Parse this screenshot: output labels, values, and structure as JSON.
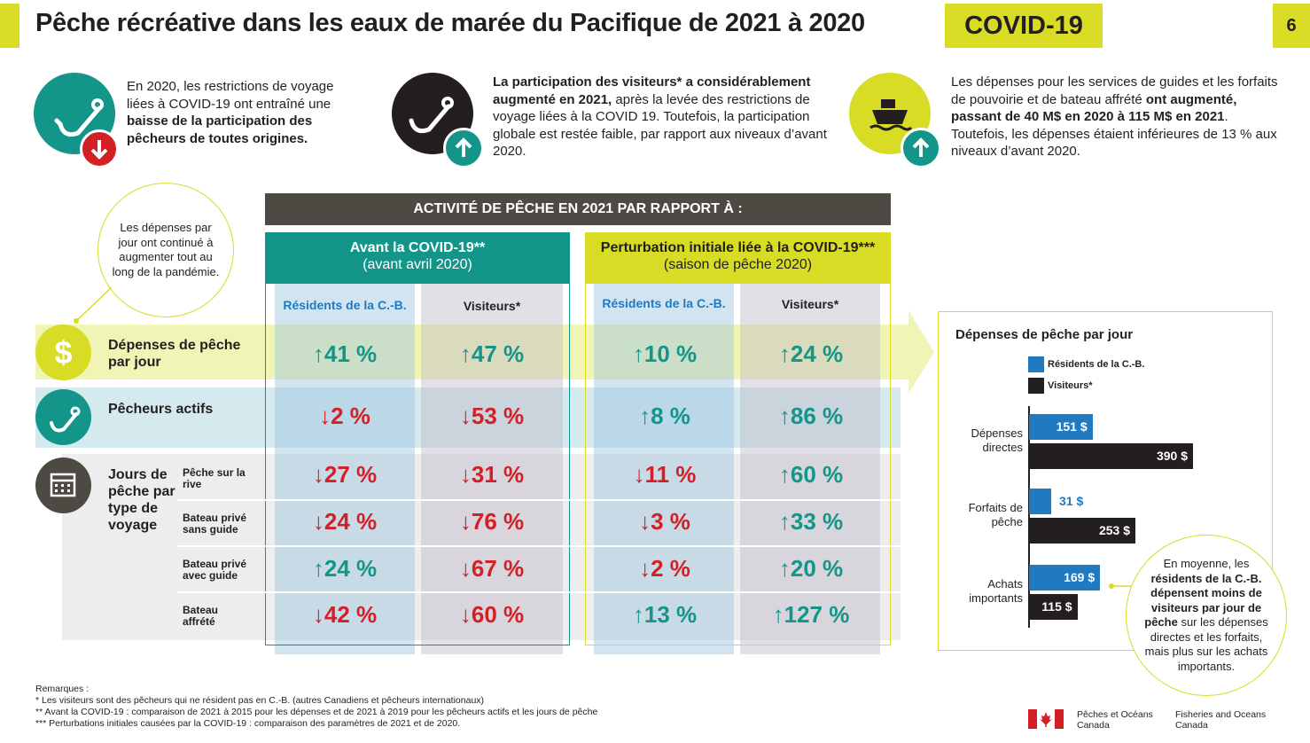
{
  "header": {
    "title": "Pêche récréative dans les eaux de marée du Pacifique de 2021 à 2020",
    "badge": "COVID-19",
    "page": "6"
  },
  "info": [
    {
      "pre": "En 2020, les restrictions de voyage liées à COVID-19 ont entraîné une ",
      "bold": "baisse de la participation des pêcheurs de toutes origines.",
      "post": "",
      "direction": "down"
    },
    {
      "pre": "",
      "bold": "La participation des visiteurs* a considérablement augmenté en 2021,",
      "post": " après la levée des restrictions de voyage liées à la COVID 19. Toutefois, la participation globale est restée faible, par rapport aux niveaux d’avant 2020.",
      "direction": "up"
    },
    {
      "pre": "Les dépenses pour les services de guides et les forfaits de pouvoirie et de bateau affrété ",
      "bold": "ont augmenté, passant de 40 M$ en 2020 à 115 M$ en 2021",
      "post": ". Toutefois, les dépenses étaient inférieures de 13 % aux niveaux d’avant 2020.",
      "direction": "up"
    }
  ],
  "callout_left": "Les dépenses par jour ont continué à augmenter tout au long de la pandémie.",
  "table": {
    "heading": "ACTIVITÉ DE PÊCHE EN 2021 PAR RAPPORT À :",
    "groups": [
      {
        "title": "Avant la COVID-19**",
        "subtitle": "(avant avril 2020)"
      },
      {
        "title": "Perturbation initiale liée à la COVID-19***",
        "subtitle": "(saison de pêche 2020)"
      }
    ],
    "columns": [
      "Résidents de la C.-B.",
      "Visiteurs*",
      "Résidents de la C.-B.",
      "Visiteurs*"
    ],
    "rows": [
      {
        "label": "Dépenses de pêche par jour",
        "values": [
          "↑41 %",
          "↑47 %",
          "↑10 %",
          "↑24 %"
        ],
        "dirs": [
          "up",
          "up",
          "up",
          "up"
        ]
      },
      {
        "label": "Pêcheurs actifs",
        "values": [
          "↓2 %",
          "↓53 %",
          "↑8 %",
          "↑86 %"
        ],
        "dirs": [
          "dn",
          "dn",
          "up",
          "up"
        ]
      }
    ],
    "trip_label": "Jours de pêche par type de voyage",
    "trip_rows": [
      {
        "label": "Pêche sur la rive",
        "values": [
          "↓27 %",
          "↓31 %",
          "↓11 %",
          "↑60 %"
        ],
        "dirs": [
          "dn",
          "dn",
          "dn",
          "up"
        ]
      },
      {
        "label": "Bateau privé sans guide",
        "values": [
          "↓24 %",
          "↓76 %",
          "↓3 %",
          "↑33 %"
        ],
        "dirs": [
          "dn",
          "dn",
          "dn",
          "up"
        ]
      },
      {
        "label": "Bateau privé avec guide",
        "values": [
          "↑24 %",
          "↓67 %",
          "↓2 %",
          "↑20 %"
        ],
        "dirs": [
          "up",
          "dn",
          "dn",
          "up"
        ]
      },
      {
        "label": "Bateau affrété",
        "values": [
          "↓42 %",
          "↓60 %",
          "↑13 %",
          "↑127 %"
        ],
        "dirs": [
          "dn",
          "dn",
          "up",
          "up"
        ]
      }
    ]
  },
  "chart_data": {
    "type": "bar",
    "orientation": "horizontal",
    "title": "Dépenses de pêche par jour",
    "categories": [
      "Dépenses directes",
      "Forfaits de pêche",
      "Achats importants"
    ],
    "series": [
      {
        "name": "Résidents de la C.-B.",
        "color": "#1f7ac1",
        "values": [
          151,
          31,
          169
        ],
        "labels": [
          "151 $",
          "31 $",
          "169 $"
        ]
      },
      {
        "name": "Visiteurs*",
        "color": "#231f20",
        "values": [
          390,
          253,
          115
        ],
        "labels": [
          "390 $",
          "253 $",
          "115 $"
        ]
      }
    ],
    "unit": "$"
  },
  "callout_right": {
    "pre": "En moyenne, les ",
    "bold": "résidents de la C.-B. dépensent moins de visiteurs par jour de pêche",
    "post": " sur les dépenses directes et les forfaits, mais plus sur les achats importants."
  },
  "notes": {
    "heading": "Remarques :",
    "lines": [
      "* Les visiteurs sont des pêcheurs qui ne résident pas en C.-B. (autres Canadiens et pêcheurs internationaux)",
      "** Avant la COVID-19 : comparaison de 2021 à 2015 pour les dépenses et de 2021 à 2019 pour les pêcheurs actifs et les jours de pêche",
      "*** Perturbations initiales causées par la COVID-19 : comparaison des paramètres de 2021 et de 2020."
    ]
  },
  "footer": {
    "fr_line1": "Pêches et Océans",
    "fr_line2": "Canada",
    "en_line1": "Fisheries and Oceans",
    "en_line2": "Canada"
  },
  "colors": {
    "yellow": "#d8dc25",
    "teal": "#13958a",
    "red": "#d32027",
    "dark": "#4d4a44",
    "blue": "#1f7ac1"
  }
}
